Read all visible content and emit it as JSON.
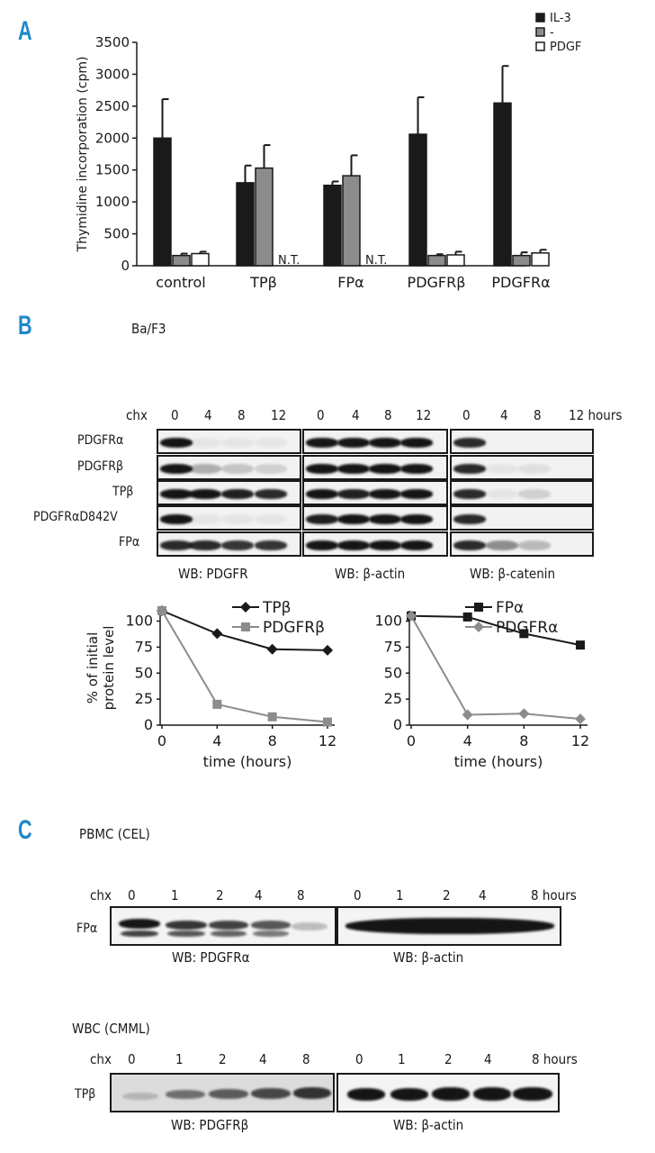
{
  "panels": {
    "a": "A",
    "b": "B",
    "c": "C"
  },
  "chart_data": [
    {
      "type": "bar",
      "ylabel": "Thymidine incorporation (cpm)",
      "ylim": [
        0,
        3500
      ],
      "yticks": [
        "0",
        "500",
        "1000",
        "1500",
        "2000",
        "2500",
        "3000",
        "3500"
      ],
      "categories": [
        "control",
        "TPβ",
        "FPα",
        "PDGFRβ",
        "PDGFRα"
      ],
      "series": [
        {
          "name": "IL-3",
          "color": "#1a1a1a",
          "values": [
            2000,
            1300,
            1260,
            2060,
            2550
          ],
          "errors": [
            610,
            270,
            60,
            580,
            580
          ]
        },
        {
          "name": "-",
          "color": "#8c8c8c",
          "values": [
            160,
            1530,
            1410,
            160,
            160
          ],
          "errors": [
            30,
            360,
            320,
            20,
            50
          ]
        },
        {
          "name": "PDGF",
          "color": "#ffffff",
          "values": [
            190,
            null,
            null,
            170,
            200
          ],
          "errors": [
            30,
            0,
            0,
            50,
            50
          ]
        }
      ],
      "annotations": [
        "N.T.",
        "N.T."
      ],
      "legend": "top-right"
    },
    {
      "type": "line",
      "ylabel": "% of initial protein level",
      "xlabel": "time (hours)",
      "ylim": [
        0,
        110
      ],
      "yticks": [
        "0",
        "25",
        "50",
        "75",
        "100"
      ],
      "x": [
        0,
        4,
        8,
        12
      ],
      "xticks": [
        "0",
        "4",
        "8",
        "12"
      ],
      "series": [
        {
          "name": "TPβ",
          "color": "#1a1a1a",
          "marker": "diamond",
          "values": [
            110,
            88,
            73,
            72
          ]
        },
        {
          "name": "PDGFRβ",
          "color": "#8c8c8c",
          "marker": "square",
          "values": [
            110,
            20,
            8,
            3
          ]
        }
      ]
    },
    {
      "type": "line",
      "xlabel": "time (hours)",
      "ylim": [
        0,
        110
      ],
      "yticks": [
        "0",
        "25",
        "50",
        "75",
        "100"
      ],
      "x": [
        0,
        4,
        8,
        12
      ],
      "xticks": [
        "0",
        "4",
        "8",
        "12"
      ],
      "series": [
        {
          "name": "FPα",
          "color": "#1a1a1a",
          "marker": "square",
          "values": [
            105,
            104,
            88,
            77
          ]
        },
        {
          "name": "PDGFRα",
          "color": "#8c8c8c",
          "marker": "diamond",
          "values": [
            105,
            10,
            11,
            6
          ]
        }
      ]
    }
  ],
  "panel_b": {
    "cell_line": "Ba/F3",
    "chx": "chx",
    "lanes": [
      "0",
      "4",
      "8",
      "12"
    ],
    "hours": "12 hours",
    "rows": [
      "PDGFRα",
      "PDGFRβ",
      "TPβ",
      "PDGFRαD842V",
      "FPα"
    ],
    "wb": [
      "WB: PDGFR",
      "WB: β-actin",
      "WB: β-catenin"
    ]
  },
  "panel_c": {
    "pbmc_label": "PBMC (CEL)",
    "wbc_label": "WBC (CMML)",
    "chx": "chx",
    "lanes1": [
      "0",
      "1",
      "2",
      "4",
      "8"
    ],
    "lanes2": [
      "0",
      "1",
      "2",
      "4"
    ],
    "hours": "8 hours",
    "row1": "FPα",
    "row2": "TPβ",
    "wb1": [
      "WB: PDGFRα",
      "WB: β-actin"
    ],
    "wb2": [
      "WB: PDGFRβ",
      "WB: β-actin"
    ]
  }
}
